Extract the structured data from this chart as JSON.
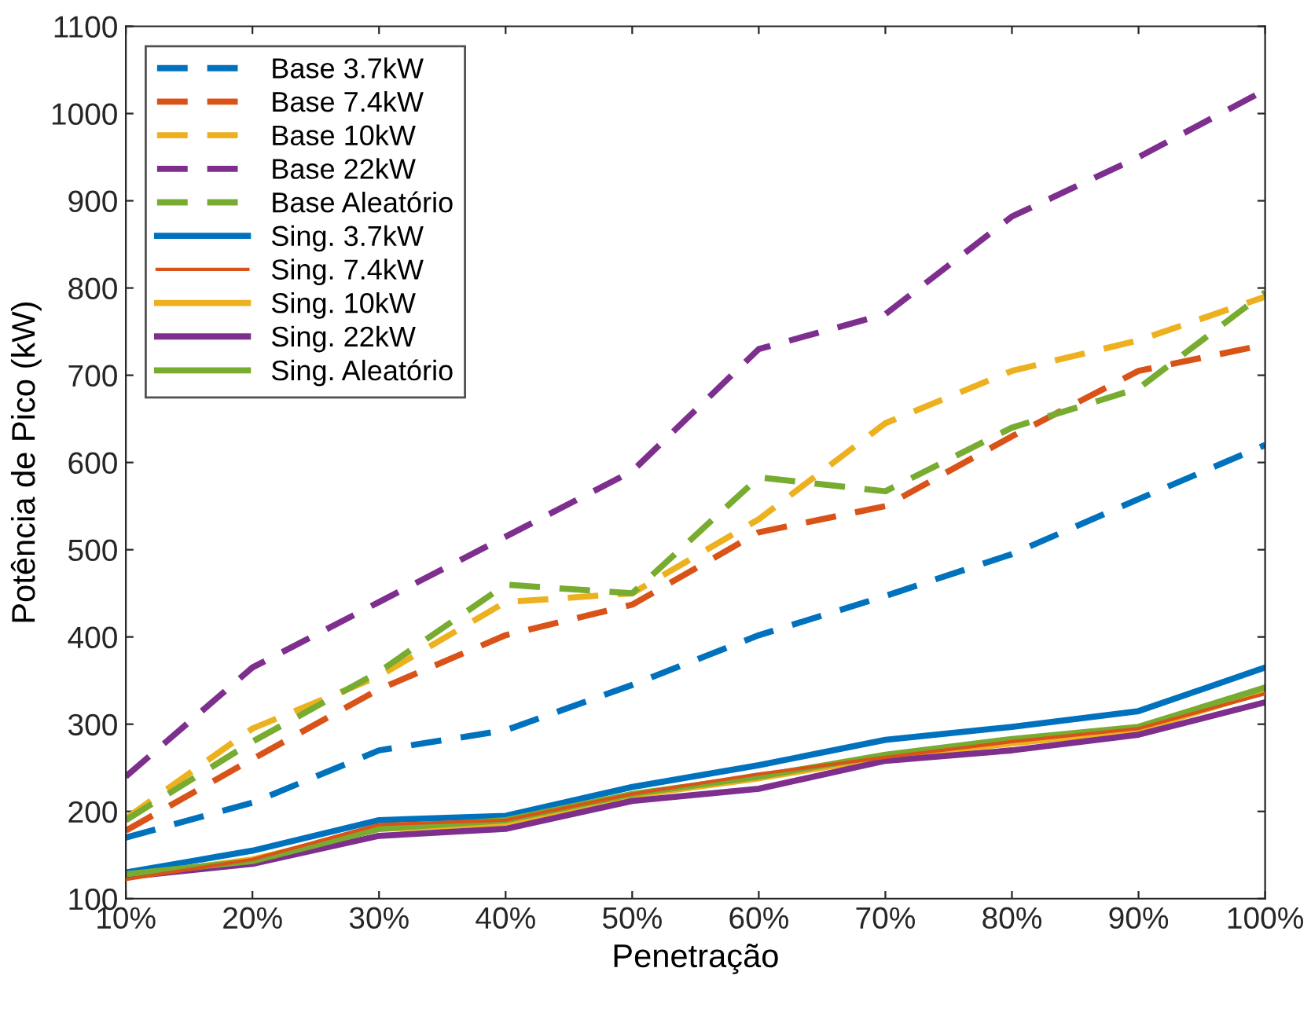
{
  "chart_data": {
    "type": "line",
    "xlabel": "Penetração",
    "ylabel": "Potência de Pico (kW)",
    "categories": [
      "10%",
      "20%",
      "30%",
      "40%",
      "50%",
      "60%",
      "70%",
      "80%",
      "90%",
      "100%"
    ],
    "ylim": [
      100,
      1100
    ],
    "yticks": [
      100,
      200,
      300,
      400,
      500,
      600,
      700,
      800,
      900,
      1000,
      1100
    ],
    "grid": false,
    "legend": "top left",
    "series": [
      {
        "name": "Base 3.7kW",
        "color": "#0072bd",
        "line_style": "dashed",
        "values": [
          170,
          210,
          270,
          293,
          345,
          402,
          447,
          495,
          558,
          620
        ]
      },
      {
        "name": "Base 7.4kW",
        "color": "#d95319",
        "line_style": "dashed",
        "values": [
          178,
          260,
          340,
          402,
          437,
          520,
          550,
          630,
          705,
          735
        ]
      },
      {
        "name": "Base 10kW",
        "color": "#edb120",
        "line_style": "dashed",
        "values": [
          192,
          295,
          355,
          440,
          450,
          535,
          645,
          705,
          740,
          790
        ]
      },
      {
        "name": "Base 22kW",
        "color": "#7e2f8e",
        "line_style": "dashed",
        "values": [
          240,
          365,
          440,
          515,
          590,
          730,
          770,
          882,
          950,
          1027
        ]
      },
      {
        "name": "Base Aleatório",
        "color": "#77ac30",
        "line_style": "dashed",
        "values": [
          190,
          280,
          360,
          460,
          450,
          583,
          567,
          640,
          685,
          795
        ]
      },
      {
        "name": "Sing. 3.7kW",
        "color": "#0072bd",
        "line_style": "solid",
        "values": [
          130,
          155,
          190,
          195,
          228,
          253,
          282,
          297,
          315,
          365
        ]
      },
      {
        "name": "Sing. 7.4kW",
        "color": "#d95319",
        "line_style": "solid",
        "values": [
          122,
          145,
          185,
          190,
          220,
          243,
          262,
          280,
          295,
          335
        ]
      },
      {
        "name": "Sing. 10kW",
        "color": "#edb120",
        "line_style": "solid",
        "values": [
          125,
          145,
          180,
          185,
          218,
          238,
          262,
          278,
          293,
          338
        ]
      },
      {
        "name": "Sing. 22kW",
        "color": "#7e2f8e",
        "line_style": "solid",
        "values": [
          125,
          140,
          172,
          180,
          212,
          226,
          258,
          270,
          288,
          325
        ]
      },
      {
        "name": "Sing. Aleatório",
        "color": "#77ac30",
        "line_style": "solid",
        "values": [
          128,
          143,
          180,
          190,
          220,
          240,
          265,
          283,
          297,
          342
        ]
      }
    ]
  }
}
